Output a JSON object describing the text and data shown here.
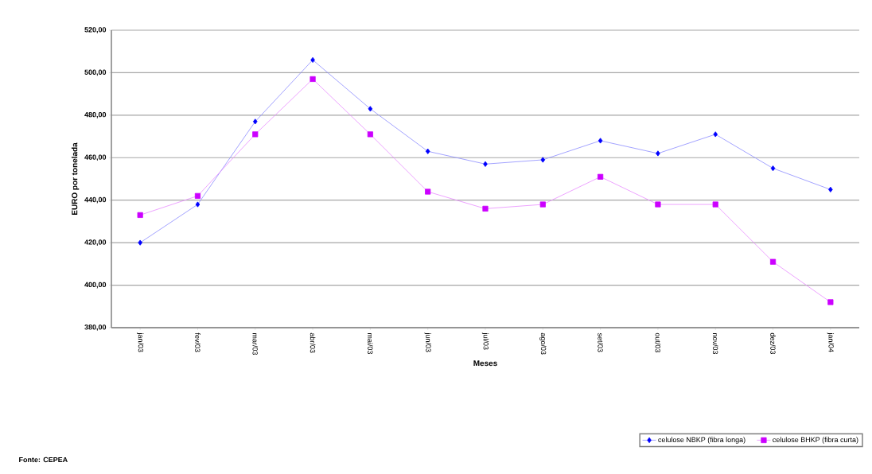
{
  "chart_data": {
    "type": "line",
    "xlabel": "Meses",
    "ylabel": "EURO por tonelada",
    "categories": [
      "jan/03",
      "fev/03",
      "mar/03",
      "abr/03",
      "mai/03",
      "jun/03",
      "jul/03",
      "ago/03",
      "set/03",
      "out/03",
      "nov/03",
      "dez/03",
      "jan/04"
    ],
    "series": [
      {
        "name": "celulose NBKP (fibra longa)",
        "color": "#0000ff",
        "marker": "diamond",
        "values": [
          420,
          438,
          477,
          506,
          483,
          463,
          457,
          459,
          468,
          462,
          471,
          455,
          445
        ]
      },
      {
        "name": "celulose BHKP (fibra curta)",
        "color": "#cc00ff",
        "marker": "square",
        "values": [
          433,
          442,
          471,
          497,
          471,
          444,
          436,
          438,
          451,
          438,
          438,
          411,
          392
        ]
      }
    ],
    "ylim": [
      380,
      520
    ],
    "yticks": [
      {
        "value": 380,
        "label": "380,00"
      },
      {
        "value": 400,
        "label": "400,00"
      },
      {
        "value": 420,
        "label": "420,00"
      },
      {
        "value": 440,
        "label": "440,00"
      },
      {
        "value": 460,
        "label": "460,00"
      },
      {
        "value": 480,
        "label": "480,00"
      },
      {
        "value": 500,
        "label": "500,00"
      },
      {
        "value": 520,
        "label": "520,00"
      }
    ],
    "grid": "y",
    "legend": "bottom right",
    "line_style": "solid",
    "annotations": [
      "Fonte: CEPEA"
    ]
  }
}
